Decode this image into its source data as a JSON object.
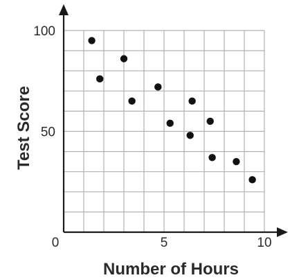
{
  "chart_data": {
    "type": "scatter",
    "title": "",
    "xlabel": "Number of Hours",
    "ylabel": "Test Score",
    "xlim": [
      0,
      10
    ],
    "ylim": [
      0,
      100
    ],
    "grid": true,
    "x_ticks": [
      {
        "value": 0,
        "label": "0"
      },
      {
        "value": 5,
        "label": "5"
      },
      {
        "value": 10,
        "label": "10"
      }
    ],
    "y_ticks": [
      {
        "value": 50,
        "label": "50"
      },
      {
        "value": 100,
        "label": "100"
      }
    ],
    "points": [
      {
        "x": 1.4,
        "y": 95
      },
      {
        "x": 1.8,
        "y": 76
      },
      {
        "x": 3.0,
        "y": 86
      },
      {
        "x": 3.4,
        "y": 65
      },
      {
        "x": 4.7,
        "y": 72
      },
      {
        "x": 5.3,
        "y": 54
      },
      {
        "x": 6.3,
        "y": 48
      },
      {
        "x": 6.4,
        "y": 65
      },
      {
        "x": 7.3,
        "y": 55
      },
      {
        "x": 7.4,
        "y": 37
      },
      {
        "x": 8.6,
        "y": 35
      },
      {
        "x": 9.4,
        "y": 26
      }
    ],
    "colors": {
      "axis": "#1a1a1a",
      "grid": "#b0b0b0",
      "point": "#111111",
      "text": "#2a2a2a"
    }
  }
}
